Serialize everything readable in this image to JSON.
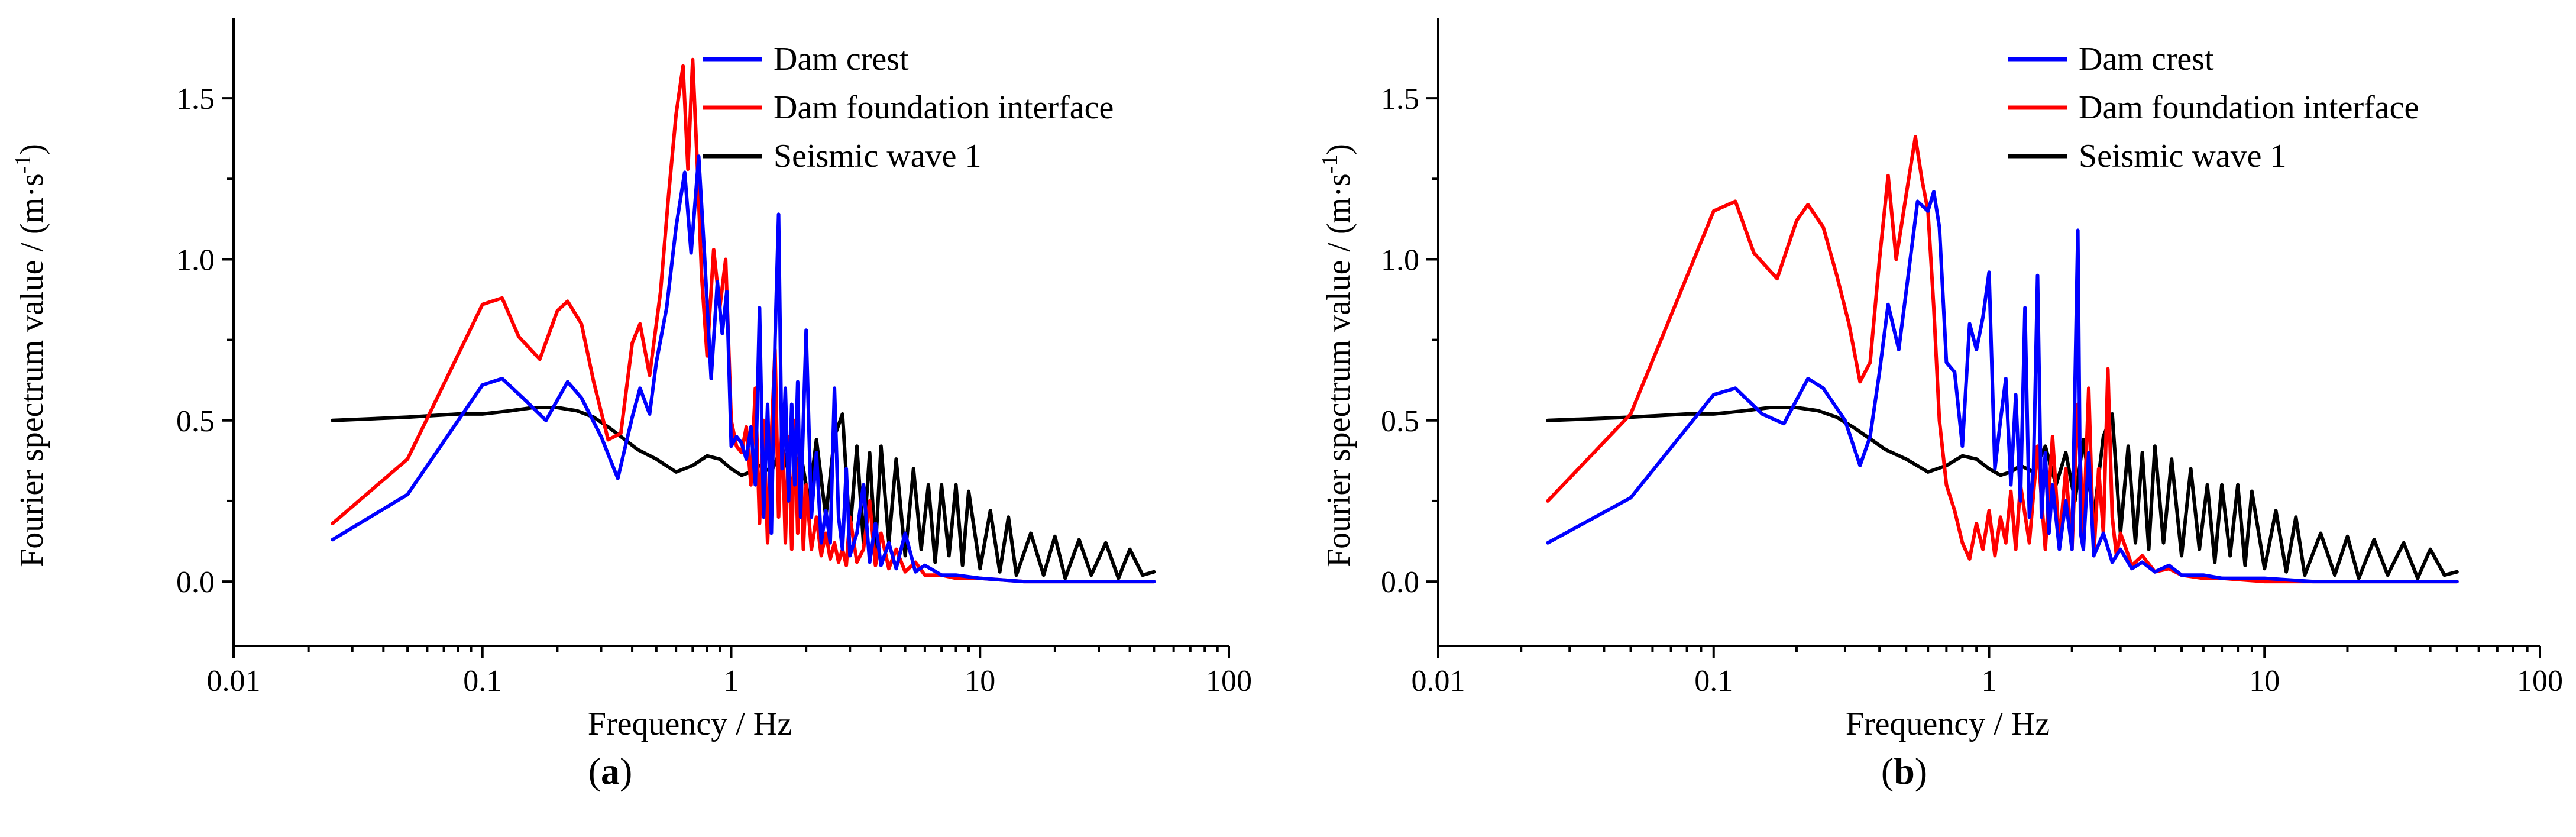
{
  "chart_data": [
    {
      "type": "line",
      "panel_label": "a",
      "xlabel": "Frequency / Hz",
      "ylabel": "Fourier spectrum value / (m·s",
      "ylabel_superscript": "-1",
      "ylabel_suffix": ")",
      "xscale": "log",
      "xlim": [
        0.01,
        100
      ],
      "ylim": [
        -0.2,
        1.75
      ],
      "xticks": [
        0.01,
        0.1,
        1,
        10,
        100
      ],
      "xtick_labels": [
        "0.01",
        "0.1",
        "1",
        "10",
        "100"
      ],
      "yticks": [
        0.0,
        0.5,
        1.0,
        1.5
      ],
      "ytick_labels": [
        "0.0",
        "0.5",
        "1.0",
        "1.5"
      ],
      "legend_position": "top-right",
      "series": [
        {
          "name": "Dam crest",
          "color": "#0000ff",
          "x": [
            0.025,
            0.05,
            0.1,
            0.12,
            0.15,
            0.18,
            0.22,
            0.25,
            0.3,
            0.35,
            0.4,
            0.43,
            0.47,
            0.5,
            0.55,
            0.6,
            0.65,
            0.69,
            0.74,
            0.78,
            0.83,
            0.88,
            0.92,
            0.96,
            1.0,
            1.05,
            1.1,
            1.15,
            1.2,
            1.25,
            1.3,
            1.35,
            1.4,
            1.45,
            1.5,
            1.55,
            1.6,
            1.65,
            1.7,
            1.75,
            1.8,
            1.85,
            1.9,
            1.95,
            2.0,
            2.1,
            2.2,
            2.3,
            2.4,
            2.5,
            2.6,
            2.7,
            2.8,
            2.9,
            3.0,
            3.2,
            3.4,
            3.6,
            3.8,
            4.0,
            4.3,
            4.6,
            5.0,
            5.5,
            6.0,
            7.0,
            8.0,
            10,
            15,
            20,
            30,
            50
          ],
          "y": [
            0.13,
            0.27,
            0.61,
            0.63,
            0.56,
            0.5,
            0.62,
            0.57,
            0.45,
            0.32,
            0.51,
            0.6,
            0.52,
            0.68,
            0.85,
            1.1,
            1.27,
            1.02,
            1.32,
            1.02,
            0.63,
            0.93,
            0.77,
            0.9,
            0.42,
            0.45,
            0.43,
            0.38,
            0.48,
            0.3,
            0.85,
            0.2,
            0.55,
            0.15,
            0.75,
            1.14,
            0.35,
            0.6,
            0.25,
            0.55,
            0.3,
            0.62,
            0.2,
            0.5,
            0.78,
            0.2,
            0.4,
            0.12,
            0.22,
            0.12,
            0.6,
            0.2,
            0.1,
            0.35,
            0.08,
            0.15,
            0.3,
            0.06,
            0.18,
            0.05,
            0.12,
            0.04,
            0.15,
            0.03,
            0.05,
            0.02,
            0.02,
            0.01,
            0.0,
            0.0,
            0.0,
            0.0
          ]
        },
        {
          "name": "Dam foundation interface",
          "color": "#ff0000",
          "x": [
            0.025,
            0.05,
            0.1,
            0.12,
            0.14,
            0.17,
            0.2,
            0.22,
            0.25,
            0.28,
            0.32,
            0.36,
            0.4,
            0.43,
            0.47,
            0.52,
            0.56,
            0.6,
            0.64,
            0.67,
            0.7,
            0.73,
            0.76,
            0.8,
            0.85,
            0.9,
            0.95,
            1.0,
            1.05,
            1.1,
            1.15,
            1.2,
            1.25,
            1.3,
            1.35,
            1.4,
            1.45,
            1.5,
            1.55,
            1.6,
            1.65,
            1.7,
            1.75,
            1.8,
            1.85,
            1.9,
            1.95,
            2.0,
            2.1,
            2.2,
            2.3,
            2.4,
            2.5,
            2.6,
            2.7,
            2.8,
            2.9,
            3.0,
            3.2,
            3.4,
            3.6,
            3.8,
            4.0,
            4.3,
            4.6,
            5.0,
            5.5,
            6.0,
            7.0,
            8.0,
            10,
            15,
            20,
            30,
            50
          ],
          "y": [
            0.18,
            0.38,
            0.86,
            0.88,
            0.76,
            0.69,
            0.84,
            0.87,
            0.8,
            0.62,
            0.44,
            0.46,
            0.74,
            0.8,
            0.64,
            0.9,
            1.2,
            1.45,
            1.6,
            1.28,
            1.62,
            1.3,
            0.95,
            0.7,
            1.03,
            0.85,
            1.0,
            0.5,
            0.42,
            0.4,
            0.48,
            0.3,
            0.6,
            0.18,
            0.5,
            0.12,
            0.45,
            0.72,
            0.2,
            0.5,
            0.12,
            0.45,
            0.1,
            0.5,
            0.15,
            0.4,
            0.1,
            0.3,
            0.1,
            0.2,
            0.08,
            0.15,
            0.07,
            0.12,
            0.06,
            0.1,
            0.05,
            0.2,
            0.06,
            0.1,
            0.25,
            0.05,
            0.15,
            0.04,
            0.1,
            0.03,
            0.06,
            0.02,
            0.02,
            0.01,
            0.01,
            0.0,
            0.0,
            0.0,
            0.0
          ]
        },
        {
          "name": "Seismic wave 1",
          "color": "#000000",
          "x": [
            0.025,
            0.05,
            0.08,
            0.1,
            0.13,
            0.16,
            0.2,
            0.24,
            0.28,
            0.32,
            0.36,
            0.42,
            0.5,
            0.6,
            0.7,
            0.8,
            0.9,
            1.0,
            1.1,
            1.2,
            1.3,
            1.45,
            1.6,
            1.75,
            1.9,
            2.05,
            2.2,
            2.4,
            2.6,
            2.8,
            3.0,
            3.2,
            3.4,
            3.6,
            3.8,
            4.0,
            4.3,
            4.6,
            5.0,
            5.4,
            5.8,
            6.2,
            6.6,
            7.0,
            7.5,
            8.0,
            8.5,
            9.0,
            10,
            11,
            12,
            13,
            14,
            16,
            18,
            20,
            22,
            25,
            28,
            32,
            36,
            40,
            45,
            50
          ],
          "y": [
            0.5,
            0.51,
            0.52,
            0.52,
            0.53,
            0.54,
            0.54,
            0.53,
            0.51,
            0.48,
            0.45,
            0.41,
            0.38,
            0.34,
            0.36,
            0.39,
            0.38,
            0.35,
            0.33,
            0.34,
            0.36,
            0.34,
            0.42,
            0.3,
            0.4,
            0.25,
            0.44,
            0.2,
            0.45,
            0.52,
            0.15,
            0.42,
            0.12,
            0.4,
            0.1,
            0.42,
            0.12,
            0.38,
            0.08,
            0.35,
            0.1,
            0.3,
            0.06,
            0.3,
            0.08,
            0.3,
            0.05,
            0.28,
            0.04,
            0.22,
            0.03,
            0.2,
            0.02,
            0.15,
            0.02,
            0.14,
            0.01,
            0.13,
            0.02,
            0.12,
            0.01,
            0.1,
            0.02,
            0.03
          ]
        }
      ]
    },
    {
      "type": "line",
      "panel_label": "b",
      "xlabel": "Frequency / Hz",
      "ylabel": "Fourier spectrum value / (m·s",
      "ylabel_superscript": "-1",
      "ylabel_suffix": ")",
      "xscale": "log",
      "xlim": [
        0.01,
        100
      ],
      "ylim": [
        -0.2,
        1.75
      ],
      "xticks": [
        0.01,
        0.1,
        1,
        10,
        100
      ],
      "xtick_labels": [
        "0.01",
        "0.1",
        "1",
        "10",
        "100"
      ],
      "yticks": [
        0.0,
        0.5,
        1.0,
        1.5
      ],
      "ytick_labels": [
        "0.0",
        "0.5",
        "1.0",
        "1.5"
      ],
      "legend_position": "top-right",
      "series": [
        {
          "name": "Dam crest",
          "color": "#0000ff",
          "x": [
            0.025,
            0.05,
            0.1,
            0.12,
            0.15,
            0.18,
            0.22,
            0.25,
            0.3,
            0.34,
            0.37,
            0.4,
            0.43,
            0.47,
            0.5,
            0.55,
            0.6,
            0.63,
            0.66,
            0.7,
            0.75,
            0.8,
            0.85,
            0.9,
            0.95,
            1.0,
            1.05,
            1.1,
            1.15,
            1.2,
            1.25,
            1.3,
            1.35,
            1.4,
            1.45,
            1.5,
            1.55,
            1.6,
            1.65,
            1.7,
            1.8,
            1.9,
            2.0,
            2.1,
            2.15,
            2.2,
            2.3,
            2.4,
            2.6,
            2.8,
            3.0,
            3.3,
            3.6,
            4.0,
            4.5,
            5.0,
            6.0,
            7.0,
            10,
            15,
            20,
            30,
            50
          ],
          "y": [
            0.12,
            0.26,
            0.58,
            0.6,
            0.52,
            0.49,
            0.63,
            0.6,
            0.5,
            0.36,
            0.45,
            0.65,
            0.86,
            0.72,
            0.9,
            1.18,
            1.15,
            1.21,
            1.1,
            0.68,
            0.65,
            0.42,
            0.8,
            0.72,
            0.82,
            0.96,
            0.35,
            0.5,
            0.63,
            0.3,
            0.58,
            0.25,
            0.85,
            0.2,
            0.35,
            0.95,
            0.2,
            0.4,
            0.15,
            0.3,
            0.1,
            0.25,
            0.1,
            1.09,
            0.15,
            0.1,
            0.4,
            0.08,
            0.15,
            0.06,
            0.1,
            0.04,
            0.06,
            0.03,
            0.05,
            0.02,
            0.02,
            0.01,
            0.01,
            0.0,
            0.0,
            0.0,
            0.0
          ]
        },
        {
          "name": "Dam foundation interface",
          "color": "#ff0000",
          "x": [
            0.025,
            0.05,
            0.1,
            0.12,
            0.14,
            0.17,
            0.2,
            0.22,
            0.25,
            0.28,
            0.31,
            0.34,
            0.37,
            0.4,
            0.43,
            0.46,
            0.5,
            0.54,
            0.57,
            0.6,
            0.63,
            0.66,
            0.7,
            0.75,
            0.8,
            0.85,
            0.9,
            0.95,
            1.0,
            1.05,
            1.1,
            1.15,
            1.2,
            1.25,
            1.3,
            1.4,
            1.5,
            1.6,
            1.7,
            1.8,
            1.9,
            2.0,
            2.1,
            2.2,
            2.3,
            2.4,
            2.5,
            2.6,
            2.7,
            2.8,
            2.9,
            3.0,
            3.3,
            3.6,
            4.0,
            4.5,
            5.0,
            6.0,
            7.0,
            10,
            15,
            20,
            30,
            50
          ],
          "y": [
            0.25,
            0.52,
            1.15,
            1.18,
            1.02,
            0.94,
            1.12,
            1.17,
            1.1,
            0.95,
            0.8,
            0.62,
            0.68,
            1.0,
            1.26,
            1.0,
            1.2,
            1.38,
            1.25,
            1.15,
            0.85,
            0.5,
            0.3,
            0.22,
            0.12,
            0.07,
            0.18,
            0.1,
            0.22,
            0.08,
            0.2,
            0.12,
            0.28,
            0.1,
            0.3,
            0.12,
            0.42,
            0.1,
            0.45,
            0.12,
            0.35,
            0.1,
            0.55,
            0.15,
            0.6,
            0.08,
            0.35,
            0.15,
            0.66,
            0.2,
            0.08,
            0.15,
            0.05,
            0.08,
            0.03,
            0.04,
            0.02,
            0.01,
            0.01,
            0.0,
            0.0,
            0.0,
            0.0,
            0.0
          ]
        },
        {
          "name": "Seismic wave 1",
          "color": "#000000",
          "x": [
            0.025,
            0.05,
            0.08,
            0.1,
            0.13,
            0.16,
            0.2,
            0.24,
            0.28,
            0.32,
            0.36,
            0.42,
            0.5,
            0.6,
            0.7,
            0.8,
            0.9,
            1.0,
            1.1,
            1.2,
            1.3,
            1.45,
            1.6,
            1.75,
            1.9,
            2.05,
            2.2,
            2.4,
            2.6,
            2.8,
            3.0,
            3.2,
            3.4,
            3.6,
            3.8,
            4.0,
            4.3,
            4.6,
            5.0,
            5.4,
            5.8,
            6.2,
            6.6,
            7.0,
            7.5,
            8.0,
            8.5,
            9.0,
            10,
            11,
            12,
            13,
            14,
            16,
            18,
            20,
            22,
            25,
            28,
            32,
            36,
            40,
            45,
            50
          ],
          "y": [
            0.5,
            0.51,
            0.52,
            0.52,
            0.53,
            0.54,
            0.54,
            0.53,
            0.51,
            0.48,
            0.45,
            0.41,
            0.38,
            0.34,
            0.36,
            0.39,
            0.38,
            0.35,
            0.33,
            0.34,
            0.36,
            0.34,
            0.42,
            0.3,
            0.4,
            0.25,
            0.44,
            0.2,
            0.45,
            0.52,
            0.15,
            0.42,
            0.12,
            0.4,
            0.1,
            0.42,
            0.12,
            0.38,
            0.08,
            0.35,
            0.1,
            0.3,
            0.06,
            0.3,
            0.08,
            0.3,
            0.05,
            0.28,
            0.04,
            0.22,
            0.03,
            0.2,
            0.02,
            0.15,
            0.02,
            0.14,
            0.01,
            0.13,
            0.02,
            0.12,
            0.01,
            0.1,
            0.02,
            0.03
          ]
        }
      ]
    }
  ]
}
